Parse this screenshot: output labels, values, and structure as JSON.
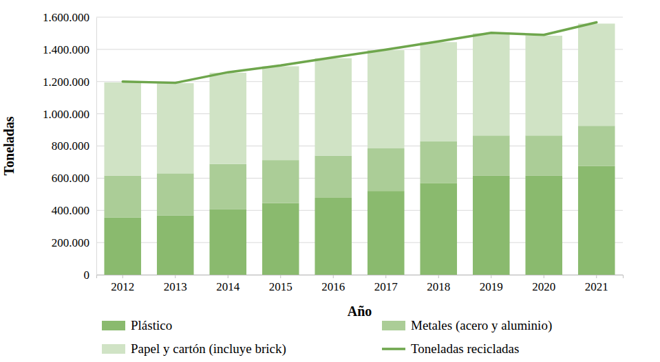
{
  "chart_data": {
    "type": "bar",
    "stacked": true,
    "grid": true,
    "legend": "bottom",
    "x_label": "Año",
    "y_label": "Toneladas",
    "categories": [
      "2012",
      "2013",
      "2014",
      "2015",
      "2016",
      "2017",
      "2018",
      "2019",
      "2020",
      "2021"
    ],
    "ylim": [
      0,
      1600000
    ],
    "yticks": [
      0,
      {
        "value": 200000,
        "label": "200.000"
      },
      {
        "value": 400000,
        "label": "400.000"
      },
      {
        "value": 600000,
        "label": "600.000"
      },
      {
        "value": 800000,
        "label": "800.000"
      },
      {
        "value": 1000000,
        "label": "1.000.000"
      },
      {
        "value": 1200000,
        "label": "1.200.000"
      },
      {
        "value": 1400000,
        "label": "1.400.000"
      },
      {
        "value": 1600000,
        "label": "1.600.000"
      }
    ],
    "series": [
      {
        "name": "Plástico",
        "type": "bar",
        "color": "#8aba6e",
        "values": [
          355000,
          368000,
          408000,
          445000,
          478000,
          520000,
          570000,
          615000,
          615000,
          675000
        ]
      },
      {
        "name": "Metales (acero y aluminio)",
        "type": "bar",
        "color": "#abcd97",
        "values": [
          260000,
          262000,
          280000,
          267000,
          262000,
          265000,
          260000,
          250000,
          250000,
          250000
        ]
      },
      {
        "name": "Papel y cartón (incluye brick)",
        "type": "bar",
        "color": "#d0e3c5",
        "values": [
          580000,
          560000,
          567000,
          583000,
          605000,
          610000,
          615000,
          635000,
          620000,
          635000
        ]
      },
      {
        "name": "Toneladas recicladas",
        "type": "line",
        "color": "#6ea64c",
        "values": [
          1200000,
          1192000,
          1258000,
          1300000,
          1350000,
          1398000,
          1450000,
          1503000,
          1490000,
          1568000
        ]
      }
    ]
  }
}
